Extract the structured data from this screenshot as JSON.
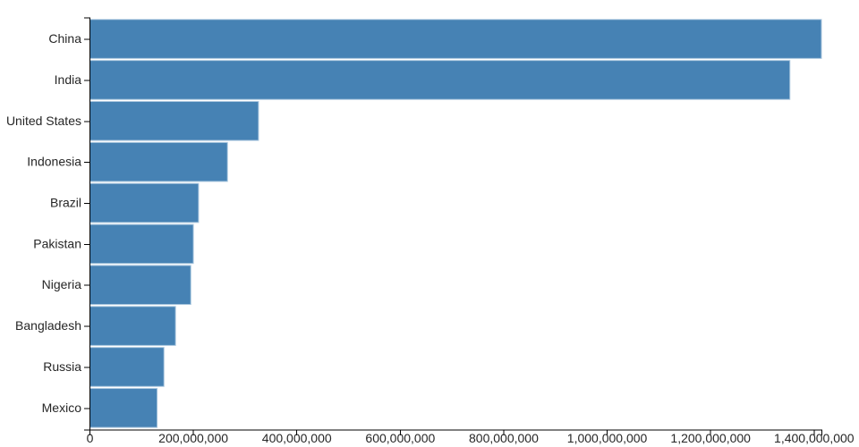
{
  "chart_data": {
    "type": "bar",
    "orientation": "horizontal",
    "categories": [
      "China",
      "India",
      "United States",
      "Indonesia",
      "Brazil",
      "Pakistan",
      "Nigeria",
      "Bangladesh",
      "Russia",
      "Mexico"
    ],
    "values": [
      1415045928,
      1354051854,
      326766748,
      266794980,
      210867954,
      200813818,
      195875237,
      166368149,
      143964709,
      130759074
    ],
    "x_domain": [
      0,
      1415045928
    ],
    "x_ticks": [
      {
        "value": 0,
        "label": "0"
      },
      {
        "value": 200000000,
        "label": "200,000,000"
      },
      {
        "value": 400000000,
        "label": "400,000,000"
      },
      {
        "value": 600000000,
        "label": "600,000,000"
      },
      {
        "value": 800000000,
        "label": "800,000,000"
      },
      {
        "value": 1000000000,
        "label": "1,000,000,000"
      },
      {
        "value": 1200000000,
        "label": "1,200,000,000"
      },
      {
        "value": 1400000000,
        "label": "1,400,000,000"
      }
    ],
    "grid": false,
    "legend": false,
    "bar_color": "#4682b4",
    "bar_stroke": "#a9c6de",
    "axis_color": "#000000",
    "text_color": "#262626",
    "background": "#ffffff"
  }
}
